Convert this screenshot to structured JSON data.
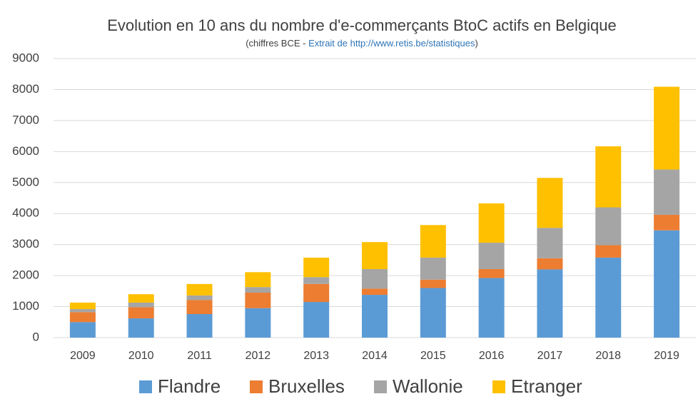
{
  "chart_data": {
    "type": "stacked_bar",
    "title": "Evolution en 10 ans du nombre d'e-commerçants BtoC actifs en Belgique",
    "subtitle": [
      "(chiffres BCE - ",
      "Extrait de http://www.retis.be/statistiques",
      ")"
    ],
    "categories": [
      "2009",
      "2010",
      "2011",
      "2012",
      "2013",
      "2014",
      "2015",
      "2016",
      "2017",
      "2018",
      "2019"
    ],
    "series": [
      {
        "name": "Flandre",
        "color": "#5b9bd5",
        "values": [
          500,
          620,
          760,
          950,
          1150,
          1380,
          1600,
          1920,
          2200,
          2580,
          3460
        ]
      },
      {
        "name": "Bruxelles",
        "color": "#ed7d31",
        "values": [
          320,
          360,
          450,
          500,
          580,
          200,
          270,
          290,
          360,
          400,
          500
        ]
      },
      {
        "name": "Wallonie",
        "color": "#a5a5a5",
        "values": [
          100,
          150,
          150,
          180,
          220,
          630,
          710,
          850,
          980,
          1220,
          1460
        ]
      },
      {
        "name": "Etranger",
        "color": "#ffc000",
        "values": [
          210,
          270,
          370,
          480,
          630,
          870,
          1050,
          1270,
          1610,
          1970,
          2670
        ]
      }
    ],
    "ylim": [
      0,
      9000
    ],
    "yticks": [
      0,
      1000,
      2000,
      3000,
      4000,
      5000,
      6000,
      7000,
      8000,
      9000
    ],
    "grid": true,
    "legend": "bottom"
  }
}
